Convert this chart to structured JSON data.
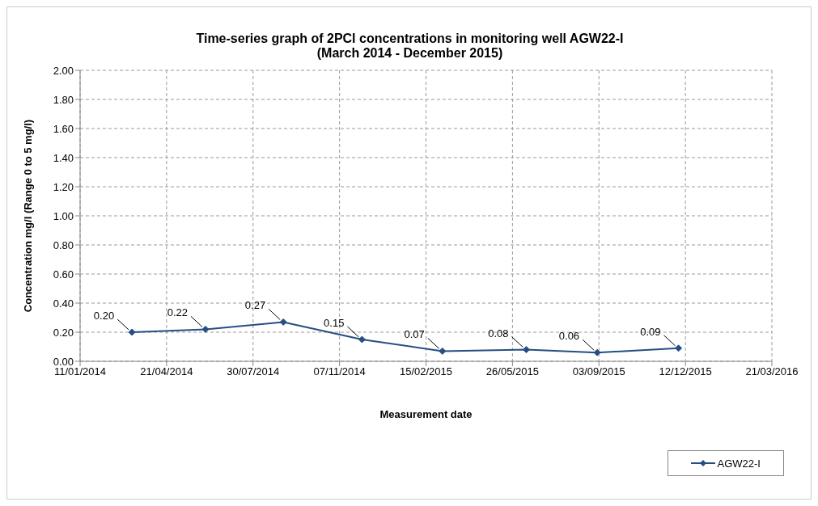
{
  "chart_data": {
    "type": "line",
    "title": "Time-series graph of 2PCl concentrations in monitoring well AGW22-I\n(March 2014 - December 2015)",
    "xlabel": "Measurement date",
    "ylabel": "Concentration mg/l (Range 0 to 5 mg/l)",
    "x": [
      "2014-03-12",
      "2014-06-05",
      "2014-09-03",
      "2014-12-03",
      "2015-03-06",
      "2015-06-11",
      "2015-09-01",
      "2015-12-04"
    ],
    "series": [
      {
        "name": "AGW22-I",
        "color": "#254e83",
        "values": [
          0.2,
          0.22,
          0.27,
          0.15,
          0.07,
          0.08,
          0.06,
          0.09
        ],
        "value_labels": [
          "0.20",
          "0.22",
          "0.27",
          "0.15",
          "0.07",
          "0.08",
          "0.06",
          "0.09"
        ]
      }
    ],
    "xlim": [
      "2014-01-11",
      "2016-03-21"
    ],
    "xticks": [
      {
        "value": "2014-01-11",
        "label": "11/01/2014"
      },
      {
        "value": "2014-04-21",
        "label": "21/04/2014"
      },
      {
        "value": "2014-07-30",
        "label": "30/07/2014"
      },
      {
        "value": "2014-11-07",
        "label": "07/11/2014"
      },
      {
        "value": "2015-02-15",
        "label": "15/02/2015"
      },
      {
        "value": "2015-05-26",
        "label": "26/05/2015"
      },
      {
        "value": "2015-09-03",
        "label": "03/09/2015"
      },
      {
        "value": "2015-12-12",
        "label": "12/12/2015"
      },
      {
        "value": "2016-03-21",
        "label": "21/03/2016"
      }
    ],
    "ylim": [
      0,
      2
    ],
    "yticks": [
      {
        "value": 0,
        "label": "0.00"
      },
      {
        "value": 0.2,
        "label": "0.20"
      },
      {
        "value": 0.4,
        "label": "0.40"
      },
      {
        "value": 0.6,
        "label": "0.60"
      },
      {
        "value": 0.8,
        "label": "0.80"
      },
      {
        "value": 1,
        "label": "1.00"
      },
      {
        "value": 1.2,
        "label": "1.20"
      },
      {
        "value": 1.4,
        "label": "1.40"
      },
      {
        "value": 1.6,
        "label": "1.60"
      },
      {
        "value": 1.8,
        "label": "1.80"
      },
      {
        "value": 2,
        "label": "2.00"
      }
    ],
    "grid": true,
    "legend": "bottom right",
    "marker": "diamond",
    "line_style": "solid"
  }
}
